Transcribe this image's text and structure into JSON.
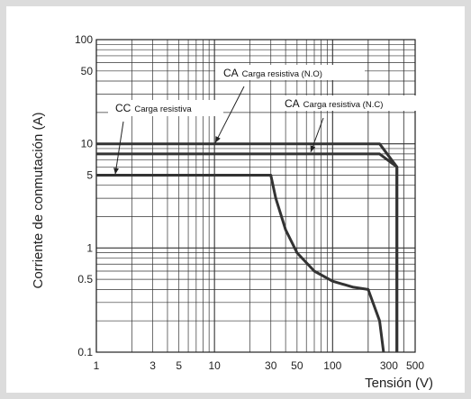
{
  "chart_data": {
    "type": "line",
    "title": "",
    "xlabel": "Tensión (V)",
    "ylabel": "Corriente de conmutación (A)",
    "x_scale": "log",
    "y_scale": "log",
    "xlim": [
      1,
      500
    ],
    "ylim": [
      0.1,
      100
    ],
    "grid": true,
    "x_ticks": [
      "1",
      "3",
      "5",
      "10",
      "30",
      "50",
      "100",
      "300",
      "500"
    ],
    "y_ticks": [
      "100",
      "50",
      "10",
      "5",
      "1",
      "0.5",
      "0.1"
    ],
    "annotations": [
      {
        "prefix": "CC",
        "text": "Carga resistiva"
      },
      {
        "prefix": "CA",
        "text": "Carga resistiva (N.O)"
      },
      {
        "prefix": "CA",
        "text": "Carga resistiva (N.C)"
      }
    ],
    "series": [
      {
        "x": [
          1,
          30,
          33,
          40,
          50,
          70,
          100,
          150,
          200,
          250,
          270
        ],
        "y": [
          5,
          5,
          3,
          1.5,
          0.9,
          0.6,
          0.48,
          0.42,
          0.4,
          0.2,
          0.1
        ]
      },
      {
        "x": [
          1,
          250,
          350,
          350
        ],
        "y": [
          10,
          10,
          6,
          0.1
        ]
      },
      {
        "x": [
          1,
          250,
          350,
          350
        ],
        "y": [
          8,
          8,
          6,
          0.1
        ]
      }
    ]
  }
}
